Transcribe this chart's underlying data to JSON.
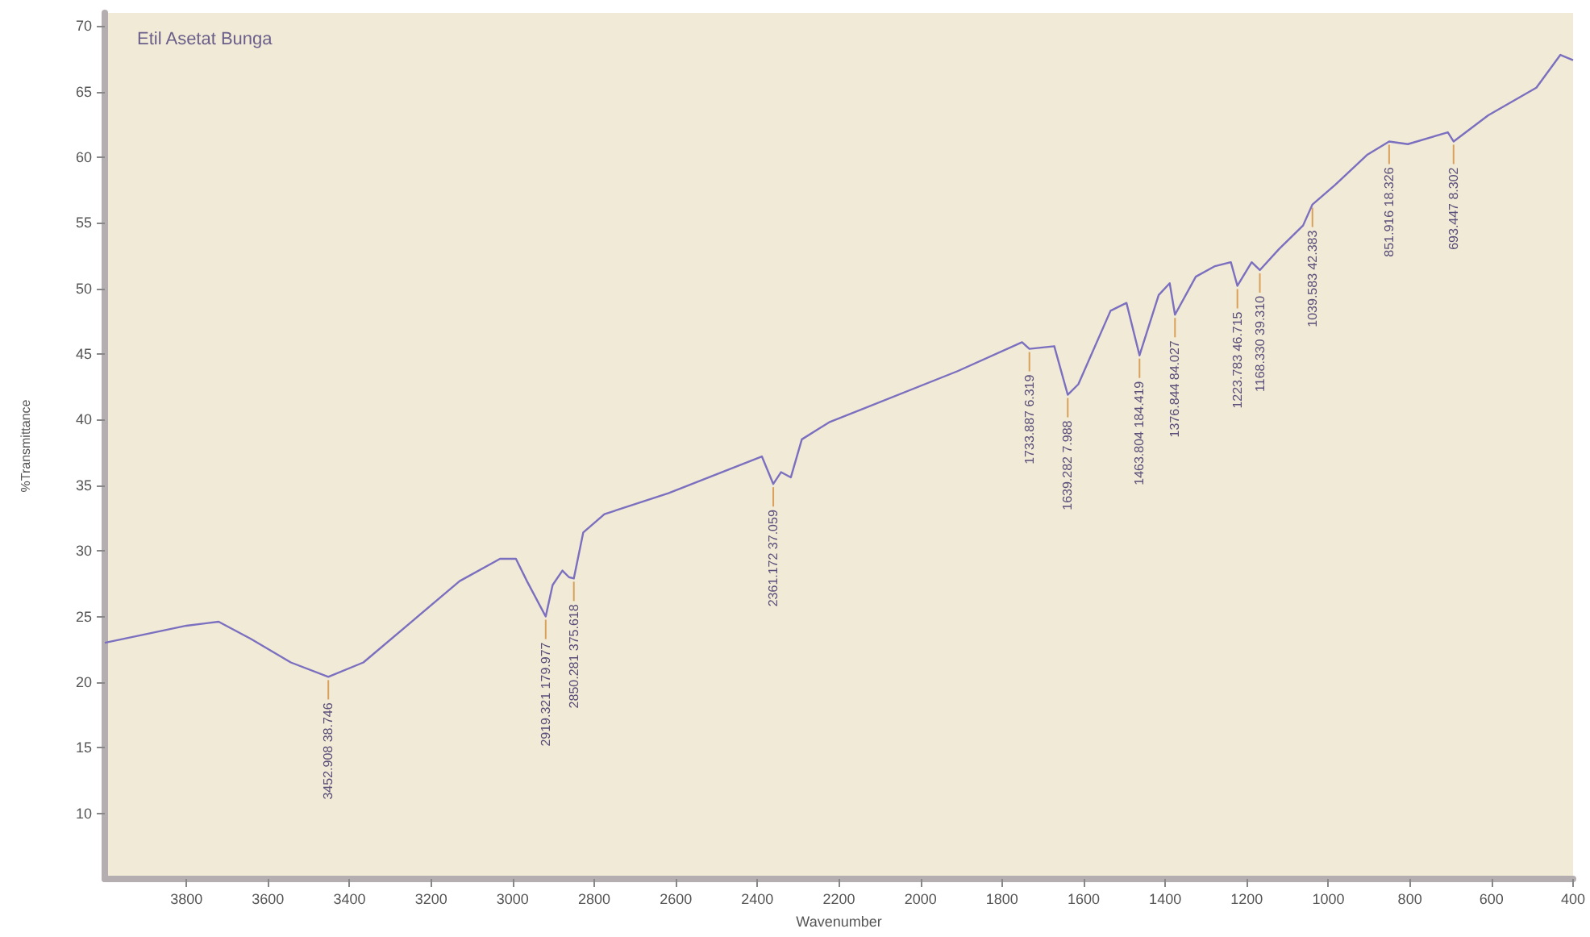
{
  "chart_data": {
    "type": "line",
    "title": "Etil Asetat Bunga",
    "xlabel": "Wavenumber",
    "ylabel": "%Transmittance",
    "x": [
      4000,
      3800,
      3721,
      3642,
      3544,
      3452,
      3366,
      3248,
      3130,
      3031,
      2992,
      2965,
      2919,
      2902,
      2878,
      2862,
      2850,
      2827,
      2775,
      2618,
      2389,
      2361,
      2342,
      2318,
      2291,
      2224,
      1909,
      1751,
      1733,
      1672,
      1639,
      1613,
      1534,
      1495,
      1463,
      1416,
      1389,
      1376,
      1325,
      1278,
      1239,
      1223,
      1188,
      1168,
      1121,
      1062,
      1039,
      983,
      904,
      851,
      805,
      707,
      693,
      608,
      490,
      431,
      400
    ],
    "series": [
      {
        "color": "#7b6fc0",
        "values": [
          23.0,
          24.3,
          24.6,
          23.3,
          21.5,
          20.4,
          21.5,
          24.6,
          27.7,
          29.4,
          29.4,
          27.7,
          25.0,
          27.4,
          28.5,
          28.0,
          27.9,
          31.4,
          32.8,
          34.4,
          37.2,
          35.1,
          36.0,
          35.6,
          38.5,
          39.8,
          43.7,
          45.9,
          45.4,
          45.6,
          41.9,
          42.7,
          48.3,
          48.9,
          44.9,
          49.5,
          50.4,
          48.0,
          50.9,
          51.7,
          52.0,
          50.2,
          52.0,
          51.4,
          53.0,
          54.8,
          56.4,
          57.9,
          60.2,
          61.2,
          61.0,
          61.9,
          61.2,
          63.2,
          65.3,
          67.8,
          67.4
        ]
      }
    ],
    "xlim": [
      4000,
      400
    ],
    "ylim": [
      5,
      71
    ],
    "xticks": [
      3800,
      3600,
      3400,
      3200,
      3000,
      2800,
      2600,
      2400,
      2200,
      2000,
      1800,
      1600,
      1400,
      1200,
      1000,
      800,
      600,
      400
    ],
    "yticks": [
      10,
      15,
      20,
      25,
      30,
      35,
      40,
      45,
      50,
      55,
      60,
      65,
      70
    ],
    "grid": false,
    "marker": "none",
    "annotations": [
      {
        "text": "3452.908 38.746",
        "x": 3452,
        "y": 20.4
      },
      {
        "text": "2919.321 179.977",
        "x": 2919,
        "y": 25.0
      },
      {
        "text": "2850.281 375.618",
        "x": 2850,
        "y": 27.9
      },
      {
        "text": "2361.172 37.059",
        "x": 2361,
        "y": 35.1
      },
      {
        "text": "1733.887 6.319",
        "x": 1733,
        "y": 45.4
      },
      {
        "text": "1639.282 7.988",
        "x": 1639,
        "y": 41.9
      },
      {
        "text": "1463.804 184.419",
        "x": 1463,
        "y": 44.9
      },
      {
        "text": "1376.844 84.027",
        "x": 1376,
        "y": 48.0
      },
      {
        "text": "1223.783 46.715",
        "x": 1223,
        "y": 50.2
      },
      {
        "text": "1168.330 39.310",
        "x": 1168,
        "y": 51.4
      },
      {
        "text": "1039.583 42.383",
        "x": 1039,
        "y": 56.4
      },
      {
        "text": "851.916 18.326",
        "x": 851,
        "y": 61.2
      },
      {
        "text": "693.447 8.302",
        "x": 693,
        "y": 61.2
      }
    ]
  }
}
